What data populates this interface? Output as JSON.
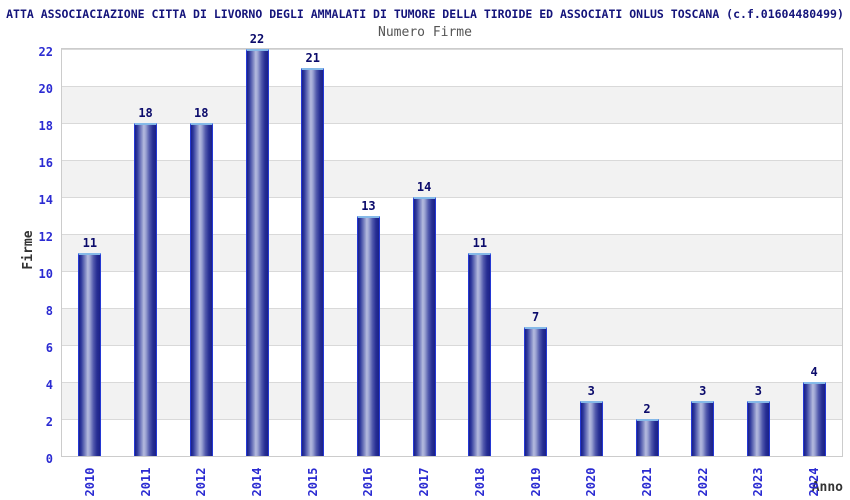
{
  "header": {
    "title": "ATTA ASSOCIACIAZIONE CITTA DI LIVORNO DEGLI AMMALATI DI TUMORE DELLA TIROIDE ED ASSOCIATI ONLUS TOSCANA (c.f.01604480499)"
  },
  "chart_data": {
    "type": "bar",
    "title": "Numero Firme",
    "xlabel": "Anno",
    "ylabel": "Firme",
    "categories": [
      "2010",
      "2011",
      "2012",
      "2014",
      "2015",
      "2016",
      "2017",
      "2018",
      "2019",
      "2020",
      "2021",
      "2022",
      "2023",
      "2024"
    ],
    "values": [
      11,
      18,
      18,
      22,
      21,
      13,
      14,
      11,
      7,
      3,
      2,
      3,
      3,
      4
    ],
    "ylim": [
      0,
      22
    ],
    "yticks": [
      0,
      2,
      4,
      6,
      8,
      10,
      12,
      14,
      16,
      18,
      20,
      22
    ],
    "grid": "horizontal-bands-alternating",
    "legend": "none",
    "colors": {
      "header_text": "#14147b",
      "chart_title": "#555555",
      "axis_label": "#333333",
      "tick_label": "#2b2bd2",
      "value_label": "#0b0b6b",
      "bar_gradient_dark": "#1b2187",
      "bar_gradient_light": "#b5bbde",
      "bar_edge": "#2438d4",
      "bar_top_highlight": "#85b9e8",
      "band_gray": "#f2f2f2",
      "gridline": "#d9d9d9",
      "plot_border": "#cccccc"
    }
  }
}
